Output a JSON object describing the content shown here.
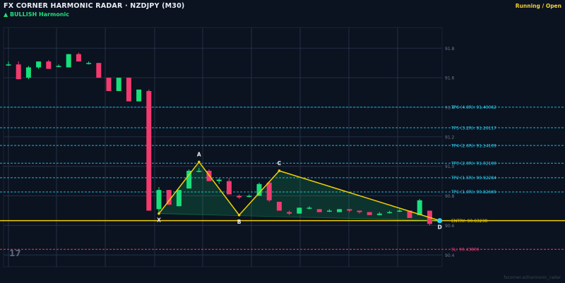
{
  "header": {
    "title": "FX CORNER HARMONIC RADAR  ·  NZDJPY (M30)",
    "pattern_label": "▲ BULLISH  Harmonic",
    "status": "Running / Open"
  },
  "watermark": "fxcorner.ai/harmonic_radar",
  "tv_logo": "17",
  "colors": {
    "background": "#0b1220",
    "bull": "#17e07a",
    "bear": "#f23a6e",
    "pattern_line": "#f0d000",
    "target_line": "#1ab8d8",
    "target_text": "#29d4f5",
    "entry": "#f0d000",
    "stop_loss": "#f23a6e"
  },
  "chart_data": {
    "type": "candlestick",
    "symbol": "NZDJPY",
    "timeframe": "M30",
    "ylim": [
      90.32,
      91.94
    ],
    "y_ticks": [
      91.8,
      91.6,
      91.4,
      91.2,
      91.0,
      90.8,
      90.6,
      90.4
    ],
    "grid": true,
    "candles": [
      {
        "o": 91.69,
        "h": 91.71,
        "l": 91.68,
        "c": 91.69
      },
      {
        "o": 91.69,
        "h": 91.71,
        "l": 91.59,
        "c": 91.59
      },
      {
        "o": 91.6,
        "h": 91.68,
        "l": 91.59,
        "c": 91.67
      },
      {
        "o": 91.67,
        "h": 91.71,
        "l": 91.66,
        "c": 91.71
      },
      {
        "o": 91.71,
        "h": 91.72,
        "l": 91.66,
        "c": 91.66
      },
      {
        "o": 91.68,
        "h": 91.69,
        "l": 91.67,
        "c": 91.68
      },
      {
        "o": 91.67,
        "h": 91.76,
        "l": 91.67,
        "c": 91.76
      },
      {
        "o": 91.76,
        "h": 91.77,
        "l": 91.71,
        "c": 91.71
      },
      {
        "o": 91.7,
        "h": 91.71,
        "l": 91.69,
        "c": 91.7
      },
      {
        "o": 91.7,
        "h": 91.7,
        "l": 91.6,
        "c": 91.6
      },
      {
        "o": 91.6,
        "h": 91.6,
        "l": 91.51,
        "c": 91.51
      },
      {
        "o": 91.51,
        "h": 91.6,
        "l": 91.51,
        "c": 91.6
      },
      {
        "o": 91.6,
        "h": 91.6,
        "l": 91.44,
        "c": 91.44
      },
      {
        "o": 91.44,
        "h": 91.52,
        "l": 91.44,
        "c": 91.52
      },
      {
        "o": 91.51,
        "h": 91.52,
        "l": 90.7,
        "c": 90.7
      },
      {
        "o": 90.71,
        "h": 90.86,
        "l": 90.68,
        "c": 90.84
      },
      {
        "o": 90.84,
        "h": 90.84,
        "l": 90.74,
        "c": 90.74
      },
      {
        "o": 90.73,
        "h": 90.84,
        "l": 90.73,
        "c": 90.84
      },
      {
        "o": 90.85,
        "h": 90.98,
        "l": 90.85,
        "c": 90.97
      },
      {
        "o": 90.97,
        "h": 90.99,
        "l": 90.96,
        "c": 90.97
      },
      {
        "o": 90.97,
        "h": 90.98,
        "l": 90.9,
        "c": 90.9
      },
      {
        "o": 90.9,
        "h": 90.92,
        "l": 90.88,
        "c": 90.91
      },
      {
        "o": 90.9,
        "h": 90.92,
        "l": 90.81,
        "c": 90.81
      },
      {
        "o": 90.8,
        "h": 90.81,
        "l": 90.78,
        "c": 90.79
      },
      {
        "o": 90.8,
        "h": 90.81,
        "l": 90.79,
        "c": 90.8
      },
      {
        "o": 90.8,
        "h": 90.89,
        "l": 90.8,
        "c": 90.88
      },
      {
        "o": 90.89,
        "h": 90.9,
        "l": 90.76,
        "c": 90.77
      },
      {
        "o": 90.76,
        "h": 90.76,
        "l": 90.7,
        "c": 90.7
      },
      {
        "o": 90.69,
        "h": 90.7,
        "l": 90.67,
        "c": 90.68
      },
      {
        "o": 90.68,
        "h": 90.72,
        "l": 90.68,
        "c": 90.72
      },
      {
        "o": 90.72,
        "h": 90.73,
        "l": 90.71,
        "c": 90.72
      },
      {
        "o": 90.71,
        "h": 90.71,
        "l": 90.69,
        "c": 90.69
      },
      {
        "o": 90.7,
        "h": 90.71,
        "l": 90.69,
        "c": 90.7
      },
      {
        "o": 90.69,
        "h": 90.71,
        "l": 90.69,
        "c": 90.71
      },
      {
        "o": 90.71,
        "h": 90.71,
        "l": 90.69,
        "c": 90.7
      },
      {
        "o": 90.7,
        "h": 90.7,
        "l": 90.68,
        "c": 90.69
      },
      {
        "o": 90.69,
        "h": 90.69,
        "l": 90.67,
        "c": 90.67
      },
      {
        "o": 90.67,
        "h": 90.69,
        "l": 90.67,
        "c": 90.68
      },
      {
        "o": 90.69,
        "h": 90.7,
        "l": 90.68,
        "c": 90.69
      },
      {
        "o": 90.7,
        "h": 90.71,
        "l": 90.69,
        "c": 90.7
      },
      {
        "o": 90.7,
        "h": 90.7,
        "l": 90.65,
        "c": 90.65
      },
      {
        "o": 90.67,
        "h": 90.78,
        "l": 90.67,
        "c": 90.77
      },
      {
        "o": 90.7,
        "h": 90.7,
        "l": 90.6,
        "c": 90.61
      },
      {
        "o": 90.63,
        "h": 90.64,
        "l": 90.62,
        "c": 90.63
      }
    ],
    "pattern": {
      "points": [
        {
          "label": "X",
          "index": 15,
          "price": 90.68
        },
        {
          "label": "A",
          "index": 19,
          "price": 91.03
        },
        {
          "label": "B",
          "index": 23,
          "price": 90.67
        },
        {
          "label": "C",
          "index": 27,
          "price": 90.97
        },
        {
          "label": "D",
          "index": 43,
          "price": 90.63238
        }
      ]
    },
    "levels": [
      {
        "kind": "target",
        "label": "TP6 (4.0R)",
        "price": 91.40062,
        "display": "91.40062"
      },
      {
        "kind": "target",
        "label": "TP5 (3.2R)",
        "price": 91.26117,
        "display": "91.26117"
      },
      {
        "kind": "target",
        "label": "TP4 (2.6R)",
        "price": 91.14109,
        "display": "91.14109"
      },
      {
        "kind": "target",
        "label": "TP3 (2.0R)",
        "price": 91.021,
        "display": "91.02100"
      },
      {
        "kind": "target",
        "label": "TP2 (1.5R)",
        "price": 90.92284,
        "display": "90.92284"
      },
      {
        "kind": "target",
        "label": "TP1 (1.0R)",
        "price": 90.82669,
        "display": "90.82669"
      },
      {
        "kind": "entry",
        "label": "ENTRY",
        "price": 90.63238,
        "display": "90.63238"
      },
      {
        "kind": "stop",
        "label": "SL",
        "price": 90.43806,
        "display": "90.43806"
      }
    ]
  }
}
